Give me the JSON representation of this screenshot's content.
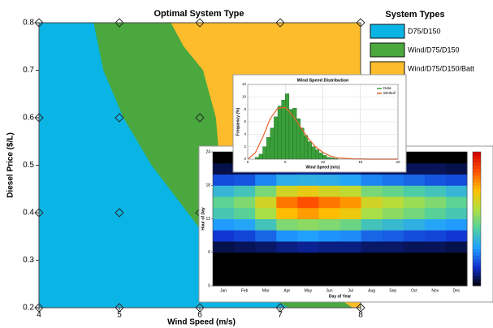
{
  "chart_data": [
    {
      "type": "region",
      "title": "Optimal System Type",
      "x_label": "Wind Speed (m/s)",
      "y_label": "Diesel Price ($/L)",
      "xlim": [
        4,
        8
      ],
      "ylim": [
        0.2,
        0.8
      ],
      "xticks": [
        4,
        5,
        6,
        7,
        8
      ],
      "yticks": [
        0.2,
        0.3,
        0.4,
        0.5,
        0.6,
        0.7,
        0.8
      ],
      "legend_title": "System Types",
      "legend": "right",
      "series": [
        {
          "name": "D75/D150",
          "color": "#0ab4e4",
          "boundary_x": [
            4.68,
            4.8,
            5.05,
            5.4,
            5.85,
            6.3,
            6.8,
            7.1
          ],
          "boundary_y": [
            0.8,
            0.7,
            0.6,
            0.5,
            0.4,
            0.3,
            0.23,
            0.2
          ]
        },
        {
          "name": "Wind/D75/D150",
          "color": "#4aa83e",
          "boundary_x": [
            5.64,
            5.8,
            6.04,
            6.2,
            6.25,
            6.4,
            7.0,
            7.9
          ],
          "boundary_y": [
            0.8,
            0.75,
            0.7,
            0.6,
            0.5,
            0.4,
            0.3,
            0.2
          ]
        },
        {
          "name": "Wind/D75/D150/Batt",
          "color": "#fcbc2c"
        }
      ],
      "points": {
        "x": [
          4,
          5,
          6,
          7,
          8,
          4,
          5,
          6,
          7,
          8,
          4,
          5,
          6,
          7,
          8,
          4,
          5,
          6,
          7,
          8
        ],
        "y": [
          0.8,
          0.8,
          0.8,
          0.8,
          0.8,
          0.6,
          0.6,
          0.6,
          0.6,
          0.6,
          0.4,
          0.4,
          0.4,
          0.4,
          0.4,
          0.2,
          0.2,
          0.2,
          0.2,
          0.2
        ]
      }
    },
    {
      "type": "heatmap",
      "x_label": "Day of Year",
      "y_label": "Hour of Day",
      "categories": [
        "Jan",
        "Feb",
        "Mar",
        "Apr",
        "May",
        "Jun",
        "Jul",
        "Aug",
        "Sep",
        "Oct",
        "Nov",
        "Dec"
      ],
      "y_bins": [
        0,
        2,
        4,
        6,
        8,
        10,
        12,
        14,
        16,
        18,
        20,
        22,
        24
      ],
      "ylim": [
        0,
        24
      ],
      "yticks": [
        0,
        6,
        12,
        18,
        24
      ],
      "zlim": [
        0,
        1
      ],
      "colorscale": [
        "#000000",
        "#1030d0",
        "#20a0ff",
        "#50d0a0",
        "#b0e040",
        "#ffc000",
        "#ff5000",
        "#d00000"
      ],
      "values": [
        [
          0,
          0,
          0,
          0.05,
          0.15,
          0.28,
          0.4,
          0.45,
          0.35,
          0.18,
          0.05,
          0
        ],
        [
          0,
          0,
          0,
          0.06,
          0.17,
          0.3,
          0.44,
          0.5,
          0.39,
          0.19,
          0.06,
          0
        ],
        [
          0,
          0,
          0,
          0.07,
          0.21,
          0.39,
          0.56,
          0.63,
          0.49,
          0.25,
          0.07,
          0
        ],
        [
          0,
          0,
          0,
          0.09,
          0.27,
          0.5,
          0.72,
          0.81,
          0.63,
          0.32,
          0.09,
          0
        ],
        [
          0,
          0,
          0,
          0.1,
          0.29,
          0.52,
          0.76,
          0.86,
          0.67,
          0.33,
          0.1,
          0
        ],
        [
          0,
          0,
          0,
          0.09,
          0.27,
          0.5,
          0.72,
          0.81,
          0.63,
          0.32,
          0.09,
          0
        ],
        [
          0,
          0,
          0,
          0.09,
          0.26,
          0.47,
          0.68,
          0.77,
          0.6,
          0.3,
          0.09,
          0
        ],
        [
          0,
          0,
          0,
          0.07,
          0.21,
          0.39,
          0.56,
          0.63,
          0.49,
          0.25,
          0.07,
          0
        ],
        [
          0,
          0,
          0,
          0.07,
          0.2,
          0.36,
          0.52,
          0.59,
          0.46,
          0.23,
          0.07,
          0
        ],
        [
          0,
          0,
          0,
          0.06,
          0.18,
          0.33,
          0.48,
          0.54,
          0.42,
          0.21,
          0.06,
          0
        ],
        [
          0,
          0,
          0,
          0.06,
          0.17,
          0.3,
          0.44,
          0.5,
          0.39,
          0.19,
          0.06,
          0
        ],
        [
          0,
          0,
          0,
          0.05,
          0.15,
          0.28,
          0.4,
          0.45,
          0.35,
          0.18,
          0.05,
          0
        ]
      ]
    },
    {
      "type": "histogram",
      "title": "Wind Speed Distribution",
      "x_label": "Wind Speed (m/s)",
      "y_label": "Frequency (%)",
      "xlim": [
        0,
        20
      ],
      "ylim": [
        0,
        12
      ],
      "xticks": [
        0,
        5,
        10,
        15,
        20
      ],
      "yticks": [
        0,
        2,
        4,
        6,
        8,
        10,
        12
      ],
      "grid": true,
      "legend": "top-right",
      "bins": [
        1,
        1.5,
        2,
        2.5,
        3,
        3.5,
        4,
        4.5,
        5,
        5.5,
        6,
        6.5,
        7,
        7.5,
        8,
        8.5,
        9,
        9.5,
        10,
        10.5,
        11,
        11.5,
        12
      ],
      "series": [
        {
          "name": "Data",
          "color": "#3aa03a",
          "values": [
            0.3,
            0.8,
            2,
            3.5,
            5,
            6.8,
            8.5,
            9.5,
            10.5,
            8,
            8.2,
            6.5,
            5,
            3.8,
            2.8,
            2,
            1.5,
            1,
            0.6,
            0.3,
            0.2,
            0.1
          ]
        },
        {
          "name": "Weibull",
          "color": "#e8642c",
          "x": [
            0,
            1,
            2,
            3,
            4,
            5,
            6,
            7,
            8,
            9,
            10,
            11,
            12,
            14,
            16,
            20
          ],
          "values": [
            0,
            1,
            3.5,
            6.5,
            8.2,
            8.3,
            7,
            5.2,
            3.4,
            2,
            1.1,
            0.5,
            0.2,
            0.05,
            0,
            0
          ]
        }
      ]
    }
  ]
}
